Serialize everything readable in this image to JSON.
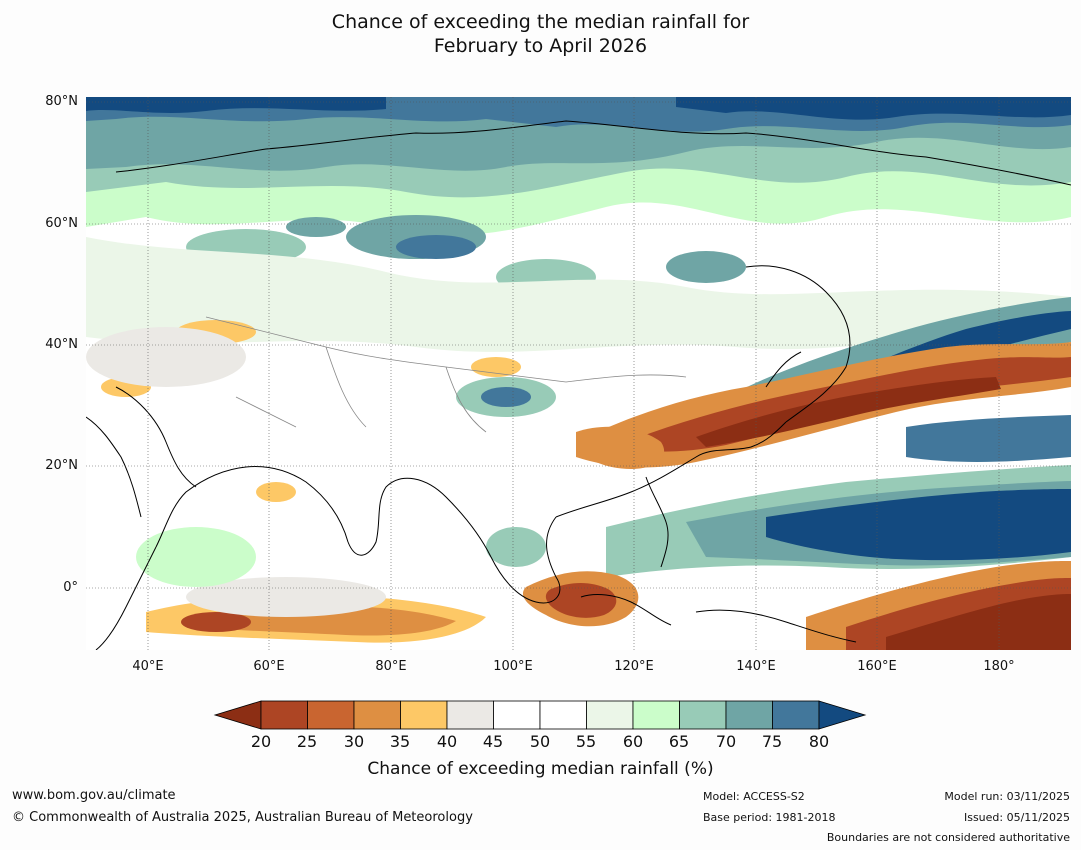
{
  "title": {
    "line1": "Chance of exceeding the median rainfall for",
    "line2": "February to April 2026"
  },
  "map": {
    "region": "Asia and western Pacific",
    "lat_labels": [
      "80°N",
      "60°N",
      "40°N",
      "20°N",
      "0°"
    ],
    "lon_labels": [
      "40°E",
      "60°E",
      "80°E",
      "100°E",
      "120°E",
      "140°E",
      "160°E",
      "180°"
    ],
    "extent": {
      "lon": [
        30,
        192
      ],
      "lat": [
        -10,
        80
      ]
    }
  },
  "legend": {
    "ticks": [
      "20",
      "25",
      "30",
      "35",
      "40",
      "45",
      "50",
      "55",
      "60",
      "65",
      "70",
      "75",
      "80"
    ],
    "colors": [
      "#8c2e14",
      "#ad4524",
      "#c96530",
      "#de8f42",
      "#fdc866",
      "#ebe9e5",
      "#ffffff",
      "#ffffff",
      "#ebf6e8",
      "#cbfdca",
      "#98cbb7",
      "#6fa5a5",
      "#42779b",
      "#134a80"
    ],
    "label": "Chance of exceeding median rainfall (%)"
  },
  "footer": {
    "website": "www.bom.gov.au/climate",
    "copyright": "© Commonwealth of Australia 2025, Australian Bureau of Meteorology",
    "model": "Model: ACCESS-S2",
    "base_period": "Base period: 1981-2018",
    "model_run": "Model run: 03/11/2025",
    "issued": "Issued: 05/11/2025",
    "disclaimer": "Boundaries are not considered authoritative"
  }
}
